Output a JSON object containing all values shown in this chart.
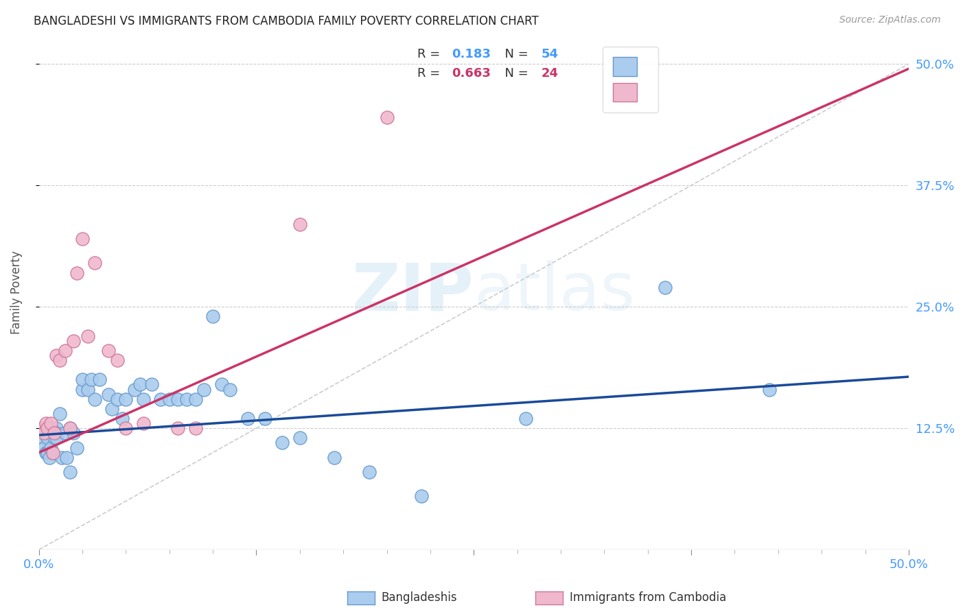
{
  "title": "BANGLADESHI VS IMMIGRANTS FROM CAMBODIA FAMILY POVERTY CORRELATION CHART",
  "source": "Source: ZipAtlas.com",
  "ylabel": "Family Poverty",
  "series1_label": "Bangladeshis",
  "series1_R": 0.183,
  "series1_N": 54,
  "series1_color": "#aaccee",
  "series1_edge_color": "#6699cc",
  "series2_label": "Immigrants from Cambodia",
  "series2_R": 0.663,
  "series2_N": 24,
  "series2_color": "#f0b8cc",
  "series2_edge_color": "#cc7799",
  "xlim": [
    0.0,
    0.5
  ],
  "ylim": [
    0.0,
    0.53
  ],
  "xtick_positions": [
    0.0,
    0.125,
    0.25,
    0.375,
    0.5
  ],
  "xtick_labels": [
    "0.0%",
    "",
    "",
    "",
    "50.0%"
  ],
  "ytick_positions": [
    0.125,
    0.25,
    0.375,
    0.5
  ],
  "ytick_labels": [
    "12.5%",
    "25.0%",
    "37.5%",
    "50.0%"
  ],
  "blue_line": {
    "x0": 0.0,
    "y0": 0.118,
    "x1": 0.5,
    "y1": 0.178
  },
  "pink_line": {
    "x0": 0.0,
    "y0": 0.1,
    "x1": 0.5,
    "y1": 0.495
  },
  "ref_line": {
    "x0": 0.0,
    "y0": 0.0,
    "x1": 0.5,
    "y1": 0.5
  },
  "blue_line_color": "#1a4a99",
  "pink_line_color": "#cc3366",
  "ref_line_color": "#cccccc",
  "background_color": "#ffffff",
  "grid_color": "#cccccc",
  "tick_label_color": "#4499ff",
  "series1_x": [
    0.002,
    0.003,
    0.004,
    0.005,
    0.005,
    0.006,
    0.007,
    0.008,
    0.009,
    0.01,
    0.01,
    0.01,
    0.012,
    0.013,
    0.015,
    0.016,
    0.018,
    0.018,
    0.02,
    0.022,
    0.025,
    0.025,
    0.028,
    0.03,
    0.032,
    0.035,
    0.04,
    0.042,
    0.045,
    0.048,
    0.05,
    0.055,
    0.058,
    0.06,
    0.065,
    0.07,
    0.075,
    0.08,
    0.085,
    0.09,
    0.095,
    0.1,
    0.105,
    0.11,
    0.12,
    0.13,
    0.14,
    0.15,
    0.17,
    0.19,
    0.22,
    0.28,
    0.36,
    0.42
  ],
  "series1_y": [
    0.115,
    0.105,
    0.1,
    0.1,
    0.115,
    0.095,
    0.105,
    0.1,
    0.115,
    0.125,
    0.12,
    0.115,
    0.14,
    0.095,
    0.12,
    0.095,
    0.125,
    0.08,
    0.12,
    0.105,
    0.165,
    0.175,
    0.165,
    0.175,
    0.155,
    0.175,
    0.16,
    0.145,
    0.155,
    0.135,
    0.155,
    0.165,
    0.17,
    0.155,
    0.17,
    0.155,
    0.155,
    0.155,
    0.155,
    0.155,
    0.165,
    0.24,
    0.17,
    0.165,
    0.135,
    0.135,
    0.11,
    0.115,
    0.095,
    0.08,
    0.055,
    0.135,
    0.27,
    0.165
  ],
  "series2_x": [
    0.002,
    0.003,
    0.004,
    0.005,
    0.007,
    0.008,
    0.009,
    0.01,
    0.012,
    0.015,
    0.018,
    0.02,
    0.022,
    0.025,
    0.028,
    0.032,
    0.04,
    0.045,
    0.05,
    0.06,
    0.08,
    0.09,
    0.15,
    0.2
  ],
  "series2_y": [
    0.125,
    0.12,
    0.13,
    0.125,
    0.13,
    0.1,
    0.12,
    0.2,
    0.195,
    0.205,
    0.125,
    0.215,
    0.285,
    0.32,
    0.22,
    0.295,
    0.205,
    0.195,
    0.125,
    0.13,
    0.125,
    0.125,
    0.335,
    0.445
  ]
}
